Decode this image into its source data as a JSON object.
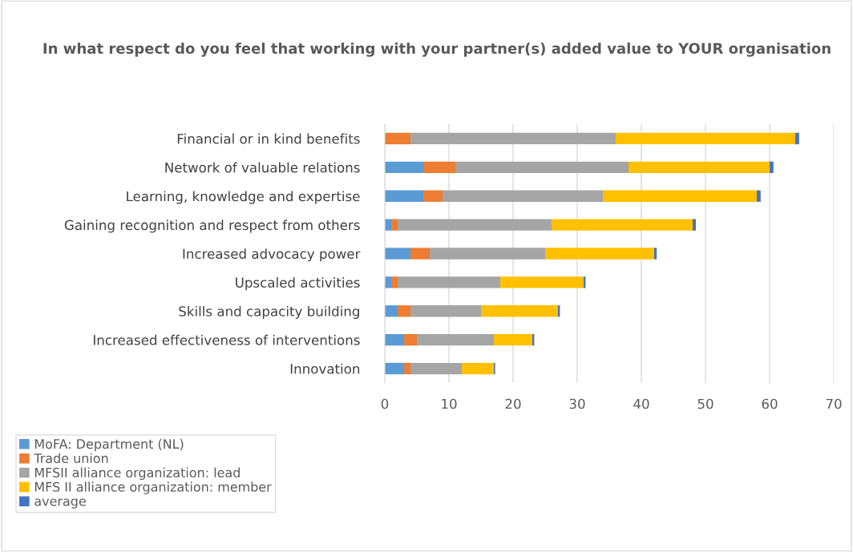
{
  "chart_data": {
    "type": "bar",
    "orientation": "horizontal",
    "stacked": true,
    "title": "In what respect do you feel that working with your partner(s) added value to YOUR organisation",
    "categories": [
      "Financial or in kind benefits",
      "Network of valuable relations",
      "Learning, knowledge and expertise",
      "Gaining recognition and respect from others",
      "Increased advocacy power",
      "Upscaled activities",
      "Skills and capacity building",
      "Increased effectiveness of interventions",
      "Innovation"
    ],
    "series": [
      {
        "name": "MoFA: Department (NL)",
        "color": "#5b9bd5",
        "values": [
          0,
          6,
          6,
          1,
          4,
          1,
          2,
          3,
          3
        ]
      },
      {
        "name": "Trade union",
        "color": "#ed7d31",
        "values": [
          4,
          5,
          3,
          1,
          3,
          1,
          2,
          2,
          1
        ]
      },
      {
        "name": "MFSII alliance organization: lead",
        "color": "#a5a5a5",
        "values": [
          32,
          27,
          25,
          24,
          18,
          16,
          11,
          12,
          8
        ]
      },
      {
        "name": "MFS II alliance organization: member",
        "color": "#ffc000",
        "values": [
          28,
          22,
          24,
          22,
          17,
          13,
          12,
          6,
          5
        ]
      },
      {
        "name": "average",
        "color": "#4472c4",
        "values": [
          0.6,
          0.6,
          0.6,
          0.5,
          0.4,
          0.3,
          0.3,
          0.3,
          0.2
        ]
      }
    ],
    "xlim": [
      0,
      70
    ],
    "xticks": [
      0,
      10,
      20,
      30,
      40,
      50,
      60,
      70
    ],
    "grid": "x",
    "legend": "bottom left"
  }
}
